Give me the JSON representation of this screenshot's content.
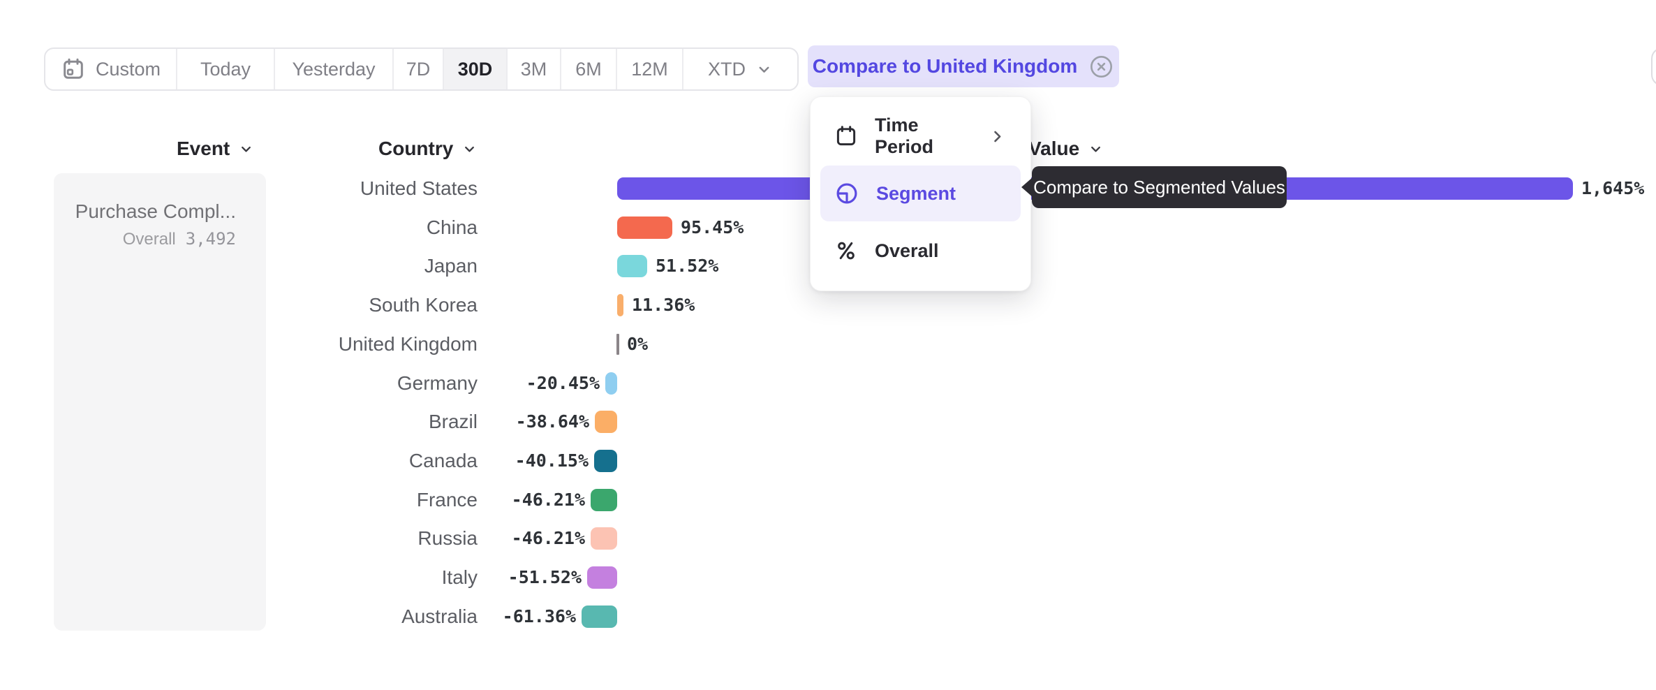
{
  "toolbar": {
    "date_ranges": [
      {
        "label": "Custom",
        "icon": "calendar"
      },
      {
        "label": "Today"
      },
      {
        "label": "Yesterday"
      },
      {
        "label": "7D"
      },
      {
        "label": "30D",
        "selected": true
      },
      {
        "label": "3M"
      },
      {
        "label": "6M"
      },
      {
        "label": "12M"
      },
      {
        "label": "XTD",
        "chevron": true
      }
    ],
    "selected_range": "30D",
    "compare_chip": {
      "label": "Compare to United Kingdom",
      "icon": "close-circle"
    }
  },
  "columns": {
    "event": "Event",
    "country": "Country",
    "value": "Value"
  },
  "event_panel": {
    "event_name": "Purchase Compl...",
    "overall_label": "Overall",
    "overall_value": "3,492"
  },
  "compare_menu": {
    "items": [
      {
        "label": "Time Period",
        "icon": "calendar",
        "has_submenu": true,
        "selected": false
      },
      {
        "label": "Segment",
        "icon": "segment",
        "has_submenu": false,
        "selected": true
      },
      {
        "label": "Overall",
        "icon": "percent",
        "has_submenu": false,
        "selected": false
      }
    ]
  },
  "tooltip": {
    "text": "Compare to Segmented Values"
  },
  "chart_data": {
    "type": "bar",
    "orientation": "horizontal",
    "title": "",
    "xlabel": "",
    "ylabel": "",
    "unit": "%",
    "categories": [
      "United States",
      "China",
      "Japan",
      "South Korea",
      "United Kingdom",
      "Germany",
      "Brazil",
      "Canada",
      "France",
      "Russia",
      "Italy",
      "Australia"
    ],
    "values": [
      1645,
      95.45,
      51.52,
      11.36,
      0,
      -20.45,
      -38.64,
      -40.15,
      -46.21,
      -46.21,
      -51.52,
      -61.36
    ],
    "value_labels": [
      "1,645%",
      "95.45%",
      "51.52%",
      "11.36%",
      "0%",
      "-20.45%",
      "-38.64%",
      "-40.15%",
      "-46.21%",
      "-46.21%",
      "-51.52%",
      "-61.36%"
    ],
    "bar_colors": [
      "#6C55E8",
      "#F4694E",
      "#7AD7DC",
      "#F9AE6B",
      "#8B8589",
      "#8FCEF0",
      "#FBAE66",
      "#15708E",
      "#3BA76D",
      "#FCC3B3",
      "#C480DF",
      "#58B8B0"
    ],
    "dotted_pattern": [
      false,
      false,
      false,
      false,
      false,
      true,
      true,
      false,
      false,
      false,
      false,
      false
    ],
    "axis": {
      "zero_baseline": true,
      "xlim": [
        -100,
        1700
      ],
      "grid": false
    },
    "legend": "none"
  },
  "colors": {
    "accent": "#5B4AE1",
    "chip_bg": "#E4E1FB",
    "chip_text": "#5347E1",
    "tooltip_bg": "#2D2C32",
    "selected_range_bg": "#F2F2F4",
    "panel_bg": "#F5F5F6"
  }
}
